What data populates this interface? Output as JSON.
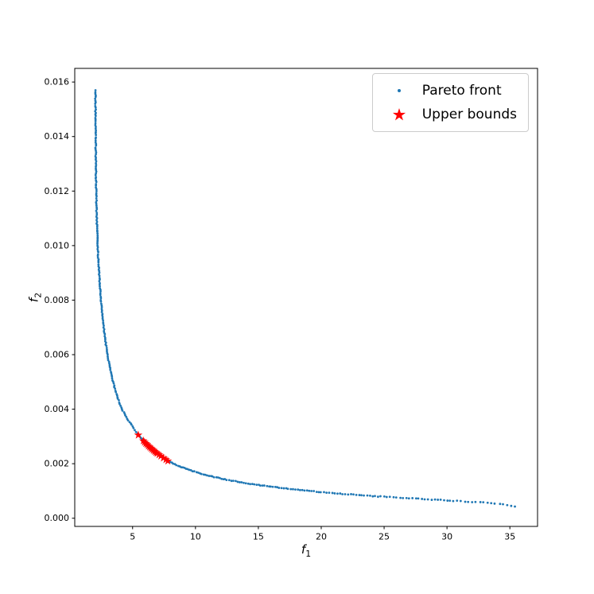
{
  "figure": {
    "background": "#ffffff"
  },
  "chart_data": {
    "type": "scatter",
    "title": "",
    "xlabel_var": "f",
    "xlabel_sub": "1",
    "ylabel_var": "f",
    "ylabel_sub": "2",
    "grid": false,
    "xlim": [
      0.4,
      37.2
    ],
    "ylim": [
      -0.0003,
      0.0165
    ],
    "x_ticks": [
      5,
      10,
      15,
      20,
      25,
      30,
      35
    ],
    "x_tick_labels": [
      "5",
      "10",
      "15",
      "20",
      "25",
      "30",
      "35"
    ],
    "y_ticks": [
      0.0,
      0.002,
      0.004,
      0.006,
      0.008,
      0.01,
      0.012,
      0.014,
      0.016
    ],
    "y_tick_labels": [
      "0.000",
      "0.002",
      "0.004",
      "0.006",
      "0.008",
      "0.010",
      "0.012",
      "0.014",
      "0.016"
    ],
    "legend": {
      "position": "upper right",
      "entries": [
        {
          "label": "Pareto front",
          "marker": "dot",
          "color": "#1f77b4"
        },
        {
          "label": "Upper bounds",
          "marker": "star",
          "color": "#ff0000"
        }
      ]
    },
    "series": [
      {
        "name": "Pareto front",
        "marker": "point",
        "color": "#1f77b4",
        "anchor_points": [
          [
            2.05,
            0.0157
          ],
          [
            2.05,
            0.015
          ],
          [
            2.06,
            0.0143
          ],
          [
            2.07,
            0.0136
          ],
          [
            2.08,
            0.0129
          ],
          [
            2.1,
            0.0122
          ],
          [
            2.12,
            0.0116
          ],
          [
            2.15,
            0.011
          ],
          [
            2.18,
            0.0105
          ],
          [
            2.22,
            0.01
          ],
          [
            2.27,
            0.0095
          ],
          [
            2.33,
            0.009
          ],
          [
            2.4,
            0.0085
          ],
          [
            2.48,
            0.008
          ],
          [
            2.58,
            0.0075
          ],
          [
            2.7,
            0.007
          ],
          [
            2.84,
            0.0065
          ],
          [
            3.0,
            0.006
          ],
          [
            3.2,
            0.0055
          ],
          [
            3.45,
            0.005
          ],
          [
            3.75,
            0.0045
          ],
          [
            4.15,
            0.004
          ],
          [
            4.65,
            0.0036
          ],
          [
            5.1,
            0.0033
          ],
          [
            5.45,
            0.00305
          ],
          [
            6.0,
            0.00277
          ],
          [
            6.5,
            0.00255
          ],
          [
            7.0,
            0.00236
          ],
          [
            7.5,
            0.00219
          ],
          [
            8.0,
            0.00206
          ],
          [
            8.75,
            0.0019
          ],
          [
            9.5,
            0.00177
          ],
          [
            10.5,
            0.00163
          ],
          [
            11.5,
            0.00151
          ],
          [
            12.5,
            0.00141
          ],
          [
            13.5,
            0.00133
          ],
          [
            14.5,
            0.00125
          ],
          [
            15.5,
            0.00119
          ],
          [
            17.0,
            0.0011
          ],
          [
            18.5,
            0.00103
          ],
          [
            20.0,
            0.00096
          ],
          [
            21.5,
            0.0009
          ],
          [
            23.0,
            0.00085
          ],
          [
            24.5,
            0.0008
          ],
          [
            26.0,
            0.00076
          ],
          [
            27.5,
            0.00072
          ],
          [
            29.0,
            0.00068
          ],
          [
            30.5,
            0.00064
          ],
          [
            32.0,
            0.0006
          ],
          [
            33.5,
            0.00056
          ],
          [
            34.5,
            0.0005
          ],
          [
            35.1,
            0.00046
          ],
          [
            35.4,
            0.00043
          ]
        ]
      },
      {
        "name": "Upper bounds",
        "marker": "star",
        "color": "#ff0000",
        "points": [
          [
            5.45,
            0.00305
          ],
          [
            5.85,
            0.00284
          ],
          [
            5.95,
            0.00279
          ],
          [
            6.05,
            0.00274
          ],
          [
            6.15,
            0.0027
          ],
          [
            6.25,
            0.00265
          ],
          [
            6.35,
            0.00261
          ],
          [
            6.45,
            0.00257
          ],
          [
            6.55,
            0.00253
          ],
          [
            6.65,
            0.00249
          ],
          [
            6.75,
            0.00245
          ],
          [
            6.85,
            0.00241
          ],
          [
            6.95,
            0.00238
          ],
          [
            7.1,
            0.00233
          ],
          [
            7.25,
            0.00228
          ],
          [
            7.45,
            0.00221
          ],
          [
            7.65,
            0.00215
          ],
          [
            7.8,
            0.0021
          ]
        ]
      }
    ]
  }
}
